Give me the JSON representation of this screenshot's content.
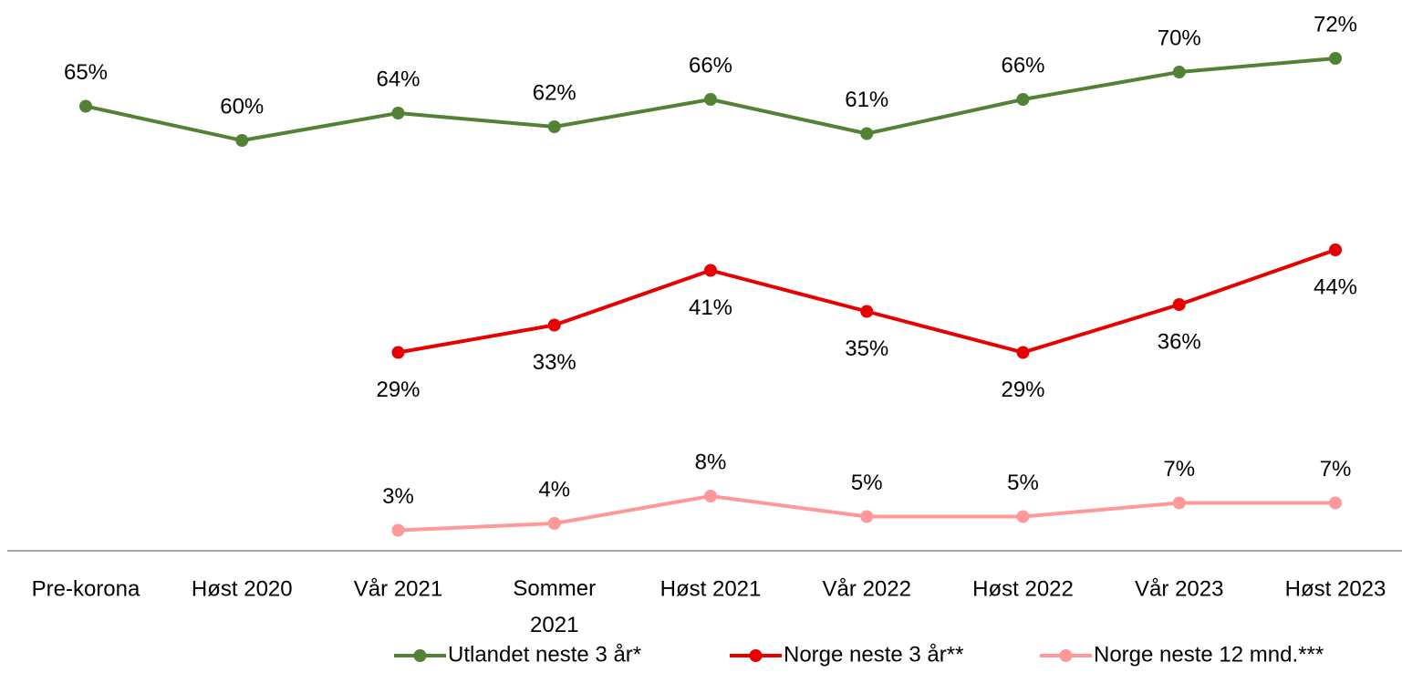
{
  "chart_data": {
    "type": "line",
    "categories": [
      "Pre-korona",
      "Høst 2020",
      "Vår 2021",
      "Sommer 2021",
      "Høst 2021",
      "Vår 2022",
      "Høst 2022",
      "Vår 2023",
      "Høst 2023"
    ],
    "ylim": [
      0,
      80
    ],
    "series": [
      {
        "name": "Utlandet neste 3 år*",
        "color": "#538135",
        "values": [
          65,
          60,
          64,
          62,
          66,
          61,
          66,
          70,
          72
        ],
        "value_labels": [
          "65%",
          "60%",
          "64%",
          "62%",
          "66%",
          "61%",
          "66%",
          "70%",
          "72%"
        ]
      },
      {
        "name": "Norge neste 3 år**",
        "color": "#e60000",
        "values": [
          null,
          null,
          29,
          33,
          41,
          35,
          29,
          36,
          44
        ],
        "value_labels": [
          null,
          null,
          "29%",
          "33%",
          "41%",
          "35%",
          "29%",
          "36%",
          "44%"
        ]
      },
      {
        "name": "Norge neste 12 mnd.***",
        "color": "#ff9999",
        "values": [
          null,
          null,
          3,
          4,
          8,
          5,
          5,
          7,
          7
        ],
        "value_labels": [
          null,
          null,
          "3%",
          "4%",
          "8%",
          "5%",
          "5%",
          "7%",
          "7%"
        ]
      }
    ]
  }
}
